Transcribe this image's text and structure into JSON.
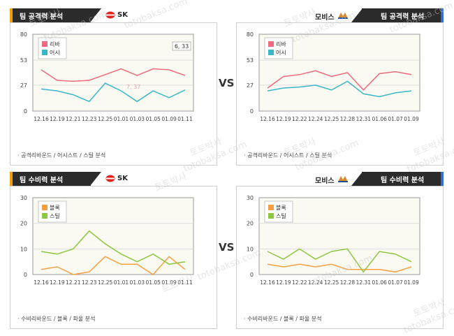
{
  "vs_label": "VS",
  "watermarks": [
    "토토박사",
    "totobaksa.com"
  ],
  "colors": {
    "header_dark": "#2b2b2b",
    "accent_left": "#f0a000",
    "accent_right": "#2f6fd0",
    "plot_bg": "#fafaf2"
  },
  "panels": [
    {
      "id": "sk-attack",
      "title": "팀 공격력 분석",
      "team": "SK",
      "team_logo_icon": "sk-logo-icon",
      "caption": "· 공격리바운드 / 어시스트 / 스틸 분석",
      "tooltip": "6, 33",
      "hover_label": "7, 37"
    },
    {
      "id": "mobis-attack",
      "title": "팀 공격력 분석",
      "team": "모비스",
      "team_logo_icon": "mobis-logo-icon",
      "caption": "· 공격리바운드 / 어시스트 / 스틸 분석"
    },
    {
      "id": "sk-defense",
      "title": "팀 수비력 분석",
      "team": "SK",
      "team_logo_icon": "sk-logo-icon",
      "caption": "· 수비리바운드 / 블록 / 파울 분석"
    },
    {
      "id": "mobis-defense",
      "title": "팀 수비력 분석",
      "team": "모비스",
      "team_logo_icon": "mobis-logo-icon",
      "caption": "· 수비리바운드 / 블록 / 파울 분석"
    }
  ],
  "chart_data": [
    {
      "type": "line",
      "categories": [
        "12.16",
        "12.19",
        "12.21",
        "12.23",
        "12.25",
        "01.01",
        "01.03",
        "01.05",
        "01.09",
        "01.11"
      ],
      "ylim": [
        0,
        80
      ],
      "yticks": [
        0,
        27,
        53,
        80
      ],
      "legend_position": "top-left",
      "series": [
        {
          "name": "리바",
          "color": "#f06a7d",
          "values": [
            43,
            32,
            31,
            32,
            38,
            44,
            37,
            44,
            43,
            37
          ]
        },
        {
          "name": "어시",
          "color": "#3bb6c9",
          "values": [
            23,
            21,
            17,
            10,
            29,
            21,
            10,
            21,
            14,
            22
          ]
        }
      ]
    },
    {
      "type": "line",
      "categories": [
        "12.16",
        "12.19",
        "12.22",
        "12.24",
        "12.25",
        "12.28",
        "12.31",
        "01.06",
        "01.07",
        "01.09"
      ],
      "ylim": [
        0,
        80
      ],
      "yticks": [
        0,
        27,
        53,
        80
      ],
      "legend_position": "top-left",
      "series": [
        {
          "name": "리바",
          "color": "#f06a7d",
          "values": [
            24,
            36,
            38,
            42,
            36,
            40,
            22,
            39,
            41,
            38
          ]
        },
        {
          "name": "어시",
          "color": "#3bb6c9",
          "values": [
            21,
            24,
            25,
            27,
            22,
            31,
            18,
            15,
            19,
            21
          ]
        }
      ]
    },
    {
      "type": "line",
      "categories": [
        "12.16",
        "12.19",
        "12.21",
        "12.23",
        "12.25",
        "01.01",
        "01.03",
        "01.05",
        "01.09",
        "01.11"
      ],
      "ylim": [
        0,
        30
      ],
      "yticks": [
        0,
        10,
        20,
        30
      ],
      "legend_position": "top-left",
      "series": [
        {
          "name": "블록",
          "color": "#f7a043",
          "values": [
            2,
            3,
            0,
            1,
            7,
            4,
            4,
            0,
            7,
            2
          ]
        },
        {
          "name": "스틸",
          "color": "#8dc63f",
          "values": [
            9,
            8,
            10,
            17,
            12,
            8,
            5,
            8,
            4,
            5
          ]
        }
      ]
    },
    {
      "type": "line",
      "categories": [
        "12.16",
        "12.19",
        "12.22",
        "12.24",
        "12.25",
        "12.28",
        "12.31",
        "01.06",
        "01.07",
        "01.09"
      ],
      "ylim": [
        0,
        30
      ],
      "yticks": [
        0,
        10,
        20,
        30
      ],
      "legend_position": "top-left",
      "series": [
        {
          "name": "블록",
          "color": "#f7a043",
          "values": [
            4,
            3,
            4,
            3,
            4,
            2,
            2,
            2,
            1,
            3
          ]
        },
        {
          "name": "스틸",
          "color": "#8dc63f",
          "values": [
            9,
            6,
            10,
            6,
            9,
            10,
            1,
            9,
            8,
            5
          ]
        }
      ]
    }
  ]
}
